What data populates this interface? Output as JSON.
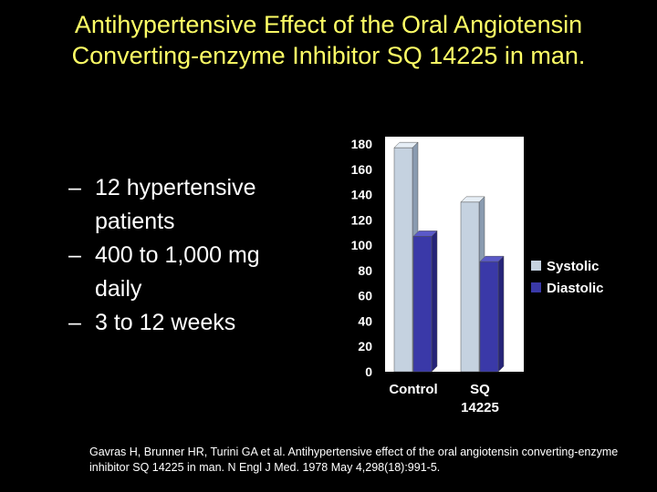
{
  "slide": {
    "title": "Antihypertensive Effect of the Oral Angiotensin Converting-enzyme Inhibitor SQ 14225 in man.",
    "bullets": [
      "12 hypertensive patients",
      "400 to 1,000 mg daily",
      "3 to 12 weeks"
    ],
    "citation": "Gavras H, Brunner HR, Turini GA et al. Antihypertensive effect of the oral angiotensin converting-enzyme inhibitor SQ 14225 in man. N Engl J Med. 1978 May 4,298(18):991-5."
  },
  "colors": {
    "title": "#ffff66",
    "systolic_front": "#c5d2e0",
    "systolic_side": "#8a9bb0",
    "systolic_top": "#e6eef6",
    "diastolic_front": "#3a39a8",
    "diastolic_side": "#262478",
    "diastolic_top": "#5a59c8",
    "plot_bg": "#ffffff"
  },
  "chart_data": {
    "type": "bar",
    "title": "",
    "xlabel": "",
    "ylabel": "",
    "categories": [
      "Control",
      "SQ 14225"
    ],
    "series": [
      {
        "name": "Systolic",
        "values": [
          177,
          134
        ]
      },
      {
        "name": "Diastolic",
        "values": [
          107,
          87
        ]
      }
    ],
    "ylim": [
      0,
      180
    ],
    "yticks": [
      "0",
      "20",
      "40",
      "60",
      "80",
      "100",
      "120",
      "140",
      "160",
      "180"
    ],
    "grid": false,
    "legend_position": "right",
    "three_d": true
  }
}
